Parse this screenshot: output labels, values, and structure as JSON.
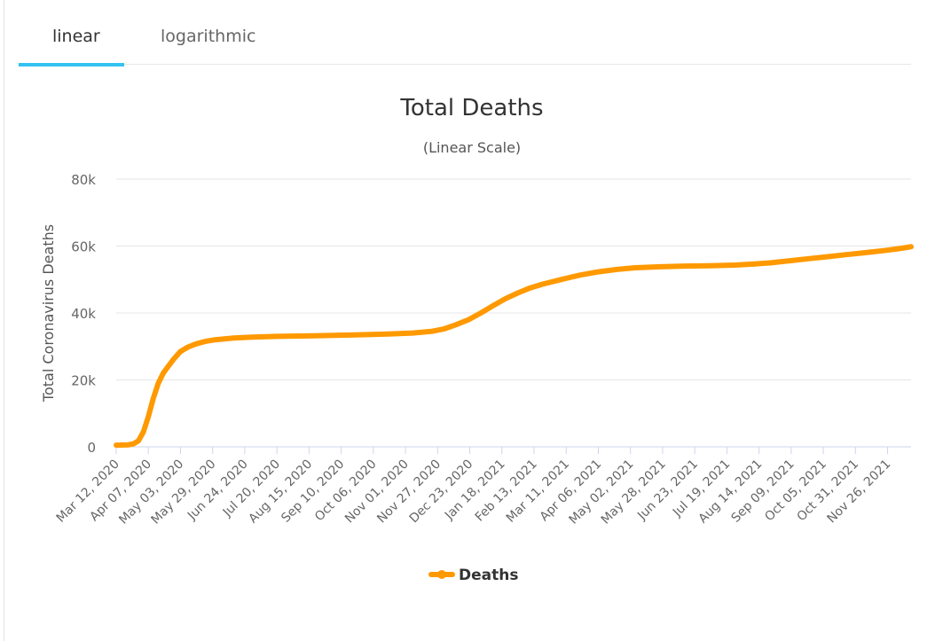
{
  "tabs": [
    {
      "label": "linear",
      "active": true
    },
    {
      "label": "logarithmic",
      "active": false
    }
  ],
  "colors": {
    "series": "#ff9900",
    "grid": "#e6e6e6",
    "tab_accent": "#33c3f0"
  },
  "chart_data": {
    "type": "line",
    "title": "Total Deaths",
    "subtitle": "(Linear Scale)",
    "ylabel": "Total Coronavirus Deaths",
    "xlabel": "",
    "ylim": [
      0,
      80000
    ],
    "y_ticks": [
      {
        "value": 0,
        "label": "0"
      },
      {
        "value": 20000,
        "label": "20k"
      },
      {
        "value": 40000,
        "label": "40k"
      },
      {
        "value": 60000,
        "label": "60k"
      },
      {
        "value": 80000,
        "label": "80k"
      }
    ],
    "x_range_days": [
      0,
      643
    ],
    "x_ticks": [
      {
        "day": 0,
        "label": "Mar 12, 2020"
      },
      {
        "day": 26,
        "label": "Apr 07, 2020"
      },
      {
        "day": 52,
        "label": "May 03, 2020"
      },
      {
        "day": 78,
        "label": "May 29, 2020"
      },
      {
        "day": 104,
        "label": "Jun 24, 2020"
      },
      {
        "day": 130,
        "label": "Jul 20, 2020"
      },
      {
        "day": 156,
        "label": "Aug 15, 2020"
      },
      {
        "day": 182,
        "label": "Sep 10, 2020"
      },
      {
        "day": 208,
        "label": "Oct 06, 2020"
      },
      {
        "day": 234,
        "label": "Nov 01, 2020"
      },
      {
        "day": 260,
        "label": "Nov 27, 2020"
      },
      {
        "day": 286,
        "label": "Dec 23, 2020"
      },
      {
        "day": 312,
        "label": "Jan 18, 2021"
      },
      {
        "day": 338,
        "label": "Feb 13, 2021"
      },
      {
        "day": 364,
        "label": "Mar 11, 2021"
      },
      {
        "day": 390,
        "label": "Apr 06, 2021"
      },
      {
        "day": 416,
        "label": "May 02, 2021"
      },
      {
        "day": 442,
        "label": "May 28, 2021"
      },
      {
        "day": 468,
        "label": "Jun 23, 2021"
      },
      {
        "day": 494,
        "label": "Jul 19, 2021"
      },
      {
        "day": 520,
        "label": "Aug 14, 2021"
      },
      {
        "day": 546,
        "label": "Sep 09, 2021"
      },
      {
        "day": 572,
        "label": "Oct 05, 2021"
      },
      {
        "day": 598,
        "label": "Oct 31, 2021"
      },
      {
        "day": 624,
        "label": "Nov 26, 2021"
      }
    ],
    "series": [
      {
        "name": "Deaths",
        "points": [
          [
            0,
            500
          ],
          [
            10,
            600
          ],
          [
            14,
            900
          ],
          [
            18,
            1800
          ],
          [
            22,
            4500
          ],
          [
            26,
            9000
          ],
          [
            30,
            14500
          ],
          [
            34,
            19000
          ],
          [
            38,
            22000
          ],
          [
            42,
            24000
          ],
          [
            46,
            26000
          ],
          [
            52,
            28500
          ],
          [
            58,
            29800
          ],
          [
            65,
            30800
          ],
          [
            72,
            31500
          ],
          [
            80,
            32000
          ],
          [
            95,
            32500
          ],
          [
            110,
            32800
          ],
          [
            130,
            33000
          ],
          [
            160,
            33200
          ],
          [
            190,
            33400
          ],
          [
            220,
            33700
          ],
          [
            240,
            34000
          ],
          [
            255,
            34500
          ],
          [
            265,
            35200
          ],
          [
            275,
            36500
          ],
          [
            285,
            38000
          ],
          [
            295,
            40000
          ],
          [
            305,
            42200
          ],
          [
            315,
            44300
          ],
          [
            325,
            46000
          ],
          [
            335,
            47500
          ],
          [
            345,
            48600
          ],
          [
            360,
            50000
          ],
          [
            375,
            51300
          ],
          [
            390,
            52300
          ],
          [
            405,
            53000
          ],
          [
            420,
            53500
          ],
          [
            440,
            53800
          ],
          [
            460,
            54000
          ],
          [
            480,
            54100
          ],
          [
            500,
            54300
          ],
          [
            515,
            54600
          ],
          [
            530,
            55000
          ],
          [
            545,
            55600
          ],
          [
            560,
            56200
          ],
          [
            575,
            56800
          ],
          [
            590,
            57400
          ],
          [
            605,
            58000
          ],
          [
            620,
            58600
          ],
          [
            633,
            59200
          ],
          [
            643,
            59800
          ]
        ]
      }
    ],
    "legend": {
      "label": "Deaths",
      "position": "bottom-center"
    }
  }
}
